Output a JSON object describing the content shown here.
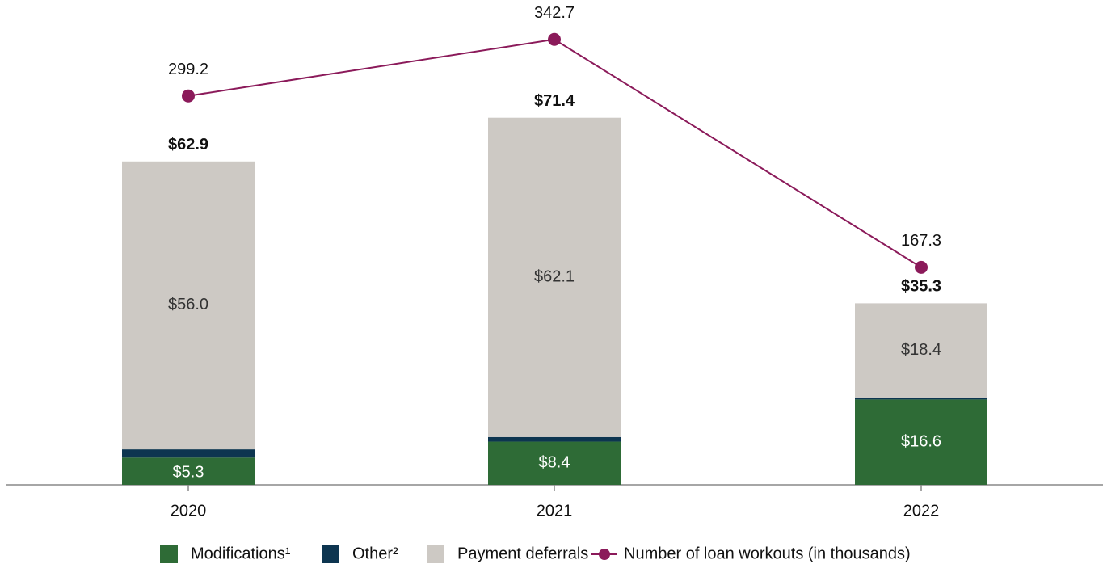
{
  "chart_data": {
    "type": "bar",
    "stacked": true,
    "categories": [
      "2020",
      "2021",
      "2022"
    ],
    "ylim": [
      0,
      94.3
    ],
    "y2lim": [
      0,
      373
    ],
    "series": [
      {
        "name": "Modifications¹",
        "color": "#2e6b36",
        "values": [
          5.3,
          8.4,
          16.6
        ],
        "value_labels": [
          "$5.3",
          "$8.4",
          "$16.6"
        ]
      },
      {
        "name": "Other²",
        "color": "#0d3550",
        "values": [
          1.6,
          0.9,
          0.3
        ]
      },
      {
        "name": "Payment deferrals",
        "color": "#cdc9c4",
        "values": [
          56.0,
          62.1,
          18.4
        ],
        "value_labels": [
          "$56.0",
          "$62.1",
          "$18.4"
        ]
      },
      {
        "name": "Number of loan workouts (in thousands)",
        "type": "line",
        "axis": "y2",
        "color": "#8b1a5a",
        "values": [
          299.2,
          342.7,
          167.3
        ]
      }
    ],
    "totals": [
      62.9,
      71.4,
      35.3
    ],
    "total_labels": [
      "$62.9",
      "$71.4",
      "$35.3"
    ]
  }
}
